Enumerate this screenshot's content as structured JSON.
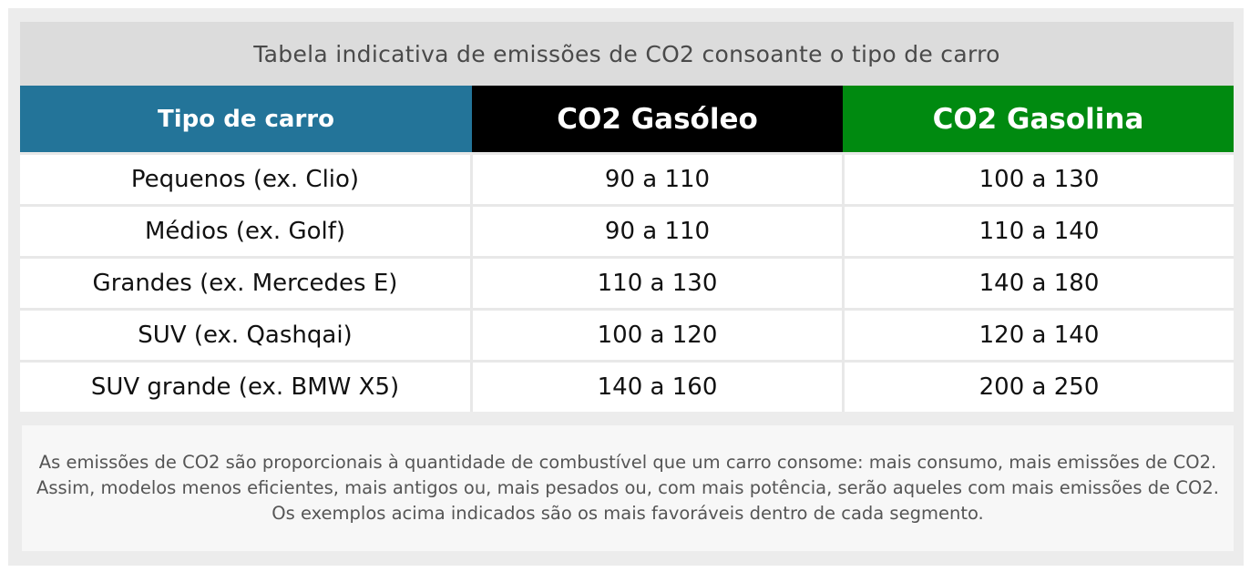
{
  "table": {
    "caption": "Tabela indicativa de emissões de CO2 consoante o tipo de carro",
    "headers": [
      "Tipo de carro",
      "CO2 Gasóleo",
      "CO2 Gasolina"
    ],
    "rows": [
      [
        "Pequenos (ex. Clio)",
        "90 a 110",
        "100 a 130"
      ],
      [
        "Médios (ex. Golf)",
        "90 a 110",
        "110 a 140"
      ],
      [
        "Grandes (ex. Mercedes E)",
        "110 a 130",
        "140 a 180"
      ],
      [
        "SUV (ex. Qashqai)",
        "100 a 120",
        "120 a 140"
      ],
      [
        "SUV grande (ex. BMW X5)",
        "140 a 160",
        "200 a 250"
      ]
    ]
  },
  "note": "As emissões de CO2 são proporcionais à quantidade de combustível que um carro consome: mais consumo, mais emissões de CO2. Assim, modelos menos eficientes, mais antigos ou, mais pesados ou, com mais potência, serão aqueles com mais emissões de CO2. Os exemplos acima indicados são os mais favoráveis dentro de cada segmento.",
  "colors": {
    "header_type": "#237499",
    "header_diesel": "#000000",
    "header_petrol": "#008a10"
  }
}
